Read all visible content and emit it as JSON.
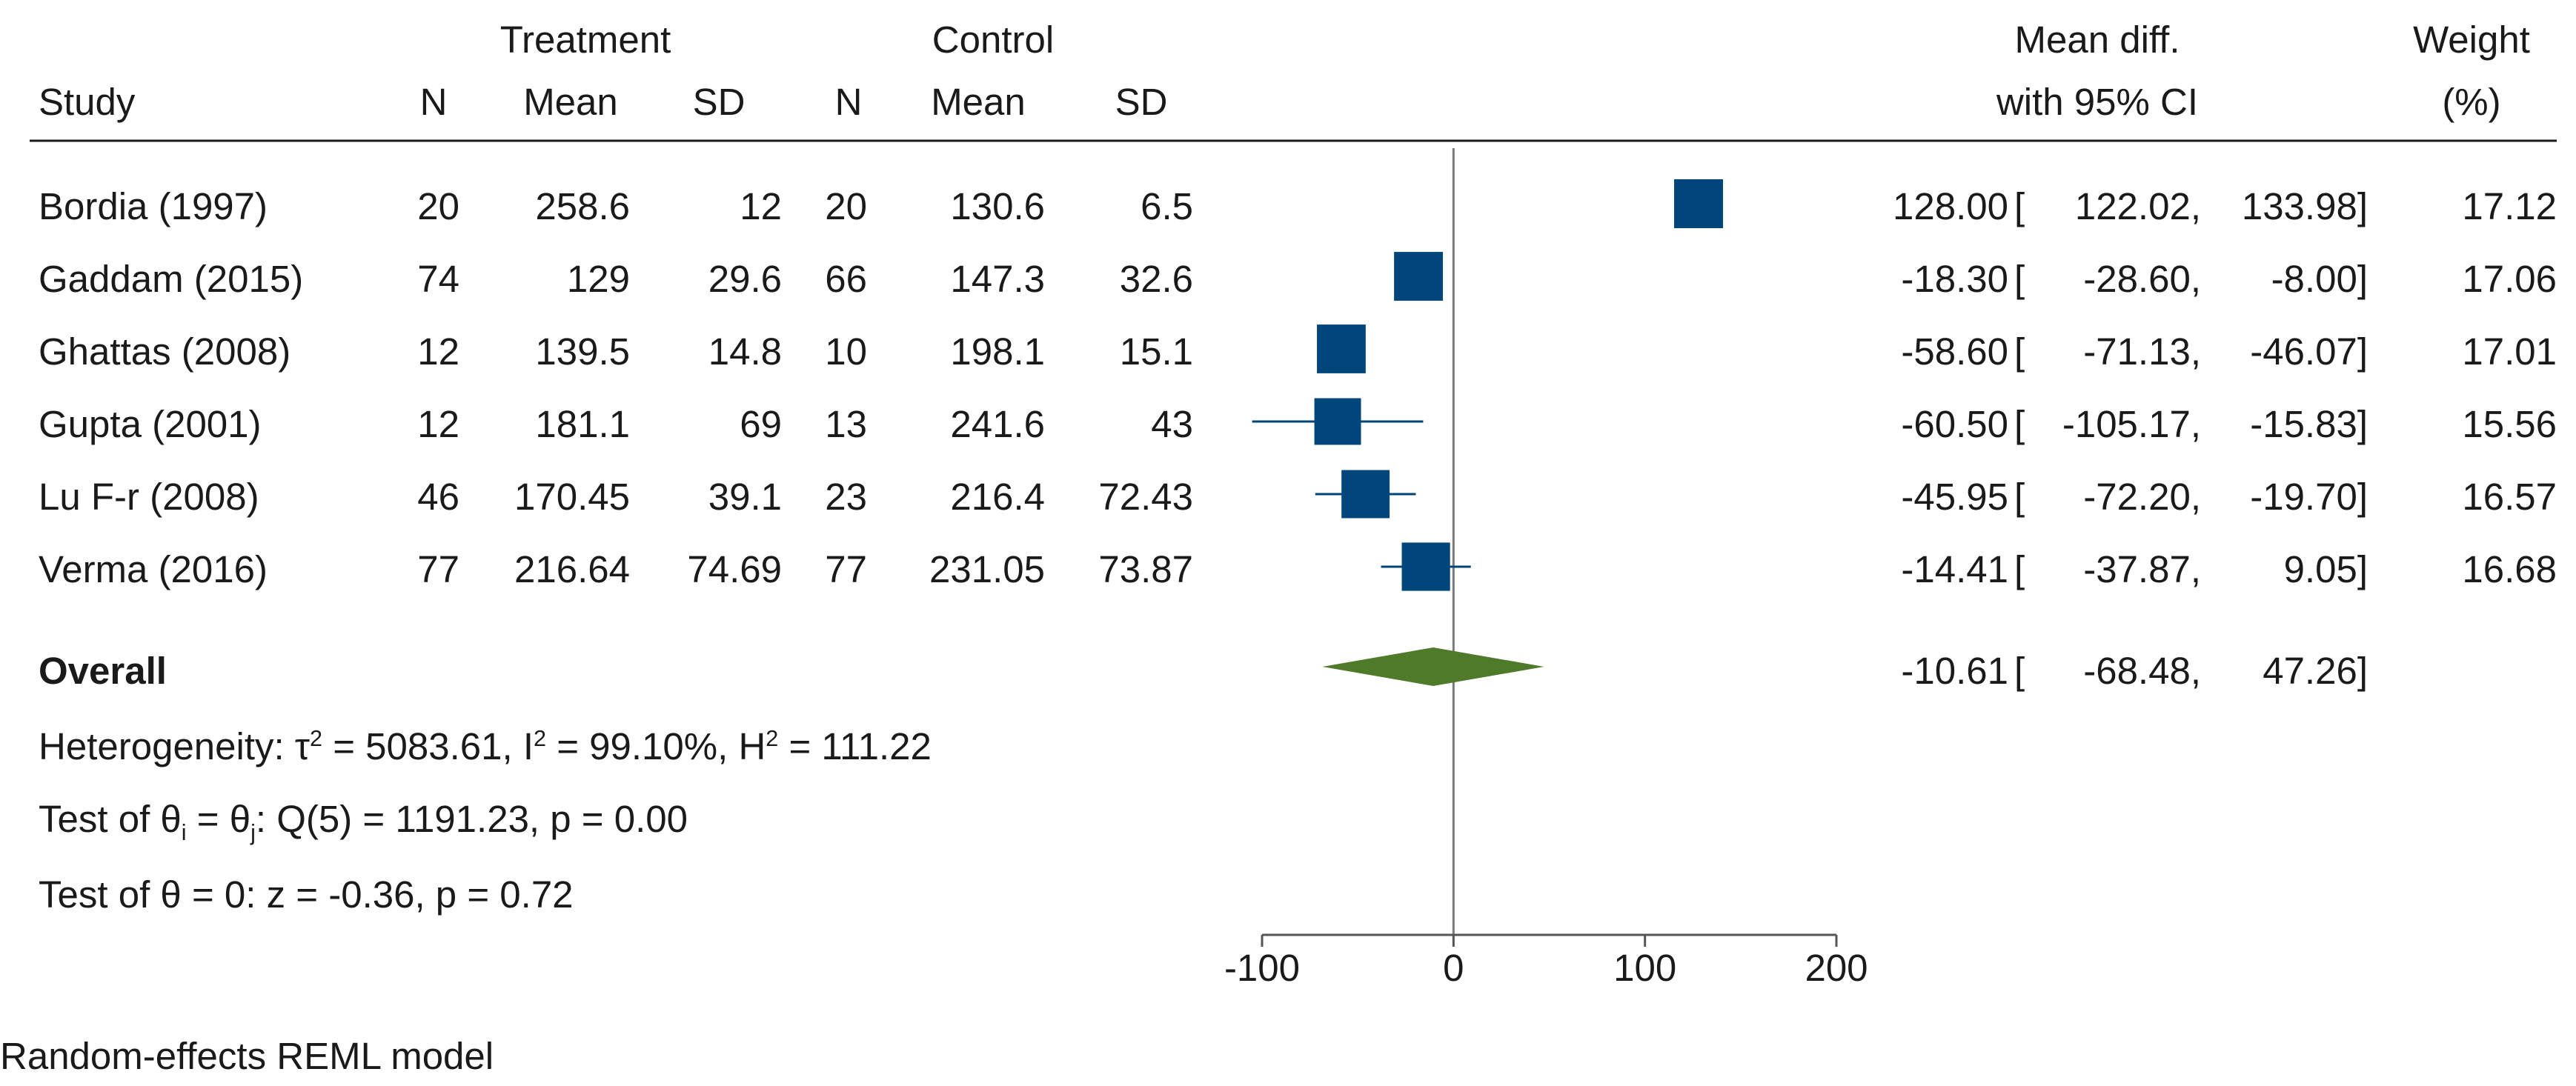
{
  "chart_data": {
    "type": "forest",
    "group_headers": [
      "Treatment",
      "Control"
    ],
    "columns": [
      "Study",
      "N",
      "Mean",
      "SD",
      "N",
      "Mean",
      "SD"
    ],
    "effect_header_line1": "Mean diff.",
    "effect_header_line2": "with 95% CI",
    "weight_header_line1": "Weight",
    "weight_header_line2": "(%)",
    "studies": [
      {
        "study": "Bordia (1997)",
        "t_n": "20",
        "t_mean": "258.6",
        "t_sd": "12",
        "c_n": "20",
        "c_mean": "130.6",
        "c_sd": "6.5",
        "md": 128.0,
        "lo": 122.02,
        "hi": 133.98,
        "md_text": "128.00",
        "lo_text": "122.02,",
        "hi_text": "133.98]",
        "weight": "17.12",
        "weight_value": 17.12
      },
      {
        "study": "Gaddam (2015)",
        "t_n": "74",
        "t_mean": "129",
        "t_sd": "29.6",
        "c_n": "66",
        "c_mean": "147.3",
        "c_sd": "32.6",
        "md": -18.3,
        "lo": -28.6,
        "hi": -8.0,
        "md_text": "-18.30",
        "lo_text": "-28.60,",
        "hi_text": "-8.00]",
        "weight": "17.06",
        "weight_value": 17.06
      },
      {
        "study": "Ghattas (2008)",
        "t_n": "12",
        "t_mean": "139.5",
        "t_sd": "14.8",
        "c_n": "10",
        "c_mean": "198.1",
        "c_sd": "15.1",
        "md": -58.6,
        "lo": -71.13,
        "hi": -46.07,
        "md_text": "-58.60",
        "lo_text": "-71.13,",
        "hi_text": "-46.07]",
        "weight": "17.01",
        "weight_value": 17.01
      },
      {
        "study": "Gupta (2001)",
        "t_n": "12",
        "t_mean": "181.1",
        "t_sd": "69",
        "c_n": "13",
        "c_mean": "241.6",
        "c_sd": "43",
        "md": -60.5,
        "lo": -105.17,
        "hi": -15.83,
        "md_text": "-60.50",
        "lo_text": "-105.17,",
        "hi_text": "-15.83]",
        "weight": "15.56",
        "weight_value": 15.56
      },
      {
        "study": "Lu F-r (2008)",
        "t_n": "46",
        "t_mean": "170.45",
        "t_sd": "39.1",
        "c_n": "23",
        "c_mean": "216.4",
        "c_sd": "72.43",
        "md": -45.95,
        "lo": -72.2,
        "hi": -19.7,
        "md_text": "-45.95",
        "lo_text": "-72.20,",
        "hi_text": "-19.70]",
        "weight": "16.57",
        "weight_value": 16.57
      },
      {
        "study": "Verma (2016)",
        "t_n": "77",
        "t_mean": "216.64",
        "t_sd": "74.69",
        "c_n": "77",
        "c_mean": "231.05",
        "c_sd": "73.87",
        "md": -14.41,
        "lo": -37.87,
        "hi": 9.05,
        "md_text": "-14.41",
        "lo_text": "-37.87,",
        "hi_text": "9.05]",
        "weight": "16.68",
        "weight_value": 16.68
      }
    ],
    "overall": {
      "label": "Overall",
      "md": -10.61,
      "lo": -68.48,
      "hi": 47.26,
      "md_text": "-10.61",
      "lo_text": "-68.48,",
      "hi_text": "47.26]"
    },
    "bracket_open": "[",
    "heterogeneity": {
      "prefix": "Heterogeneity: τ",
      "tau_sup": "2",
      "tau_value": " = 5083.61, I",
      "i_sup": "2",
      "i_value": " = 99.10%, H",
      "h_sup": "2",
      "h_value": " = 111.22"
    },
    "test_homogeneity": {
      "prefix": "Test of θ",
      "sub_i": "i",
      "middle": " = θ",
      "sub_j": "j",
      "suffix": ": Q(5) = 1191.23, p = 0.00"
    },
    "test_overall": "Test of θ = 0: z = -0.36, p = 0.72",
    "x_ticks": [
      -100,
      0,
      100,
      200
    ],
    "x_tick_labels": [
      "-100",
      "0",
      "100",
      "200"
    ],
    "xlim": [
      -100,
      200
    ],
    "null_line": 0,
    "footnote": "Random-effects REML model",
    "colors": {
      "study_marker": "#00467a",
      "overall_marker": "#4e7a2a",
      "text": "#1a1a1a",
      "axis": "#555555"
    }
  }
}
